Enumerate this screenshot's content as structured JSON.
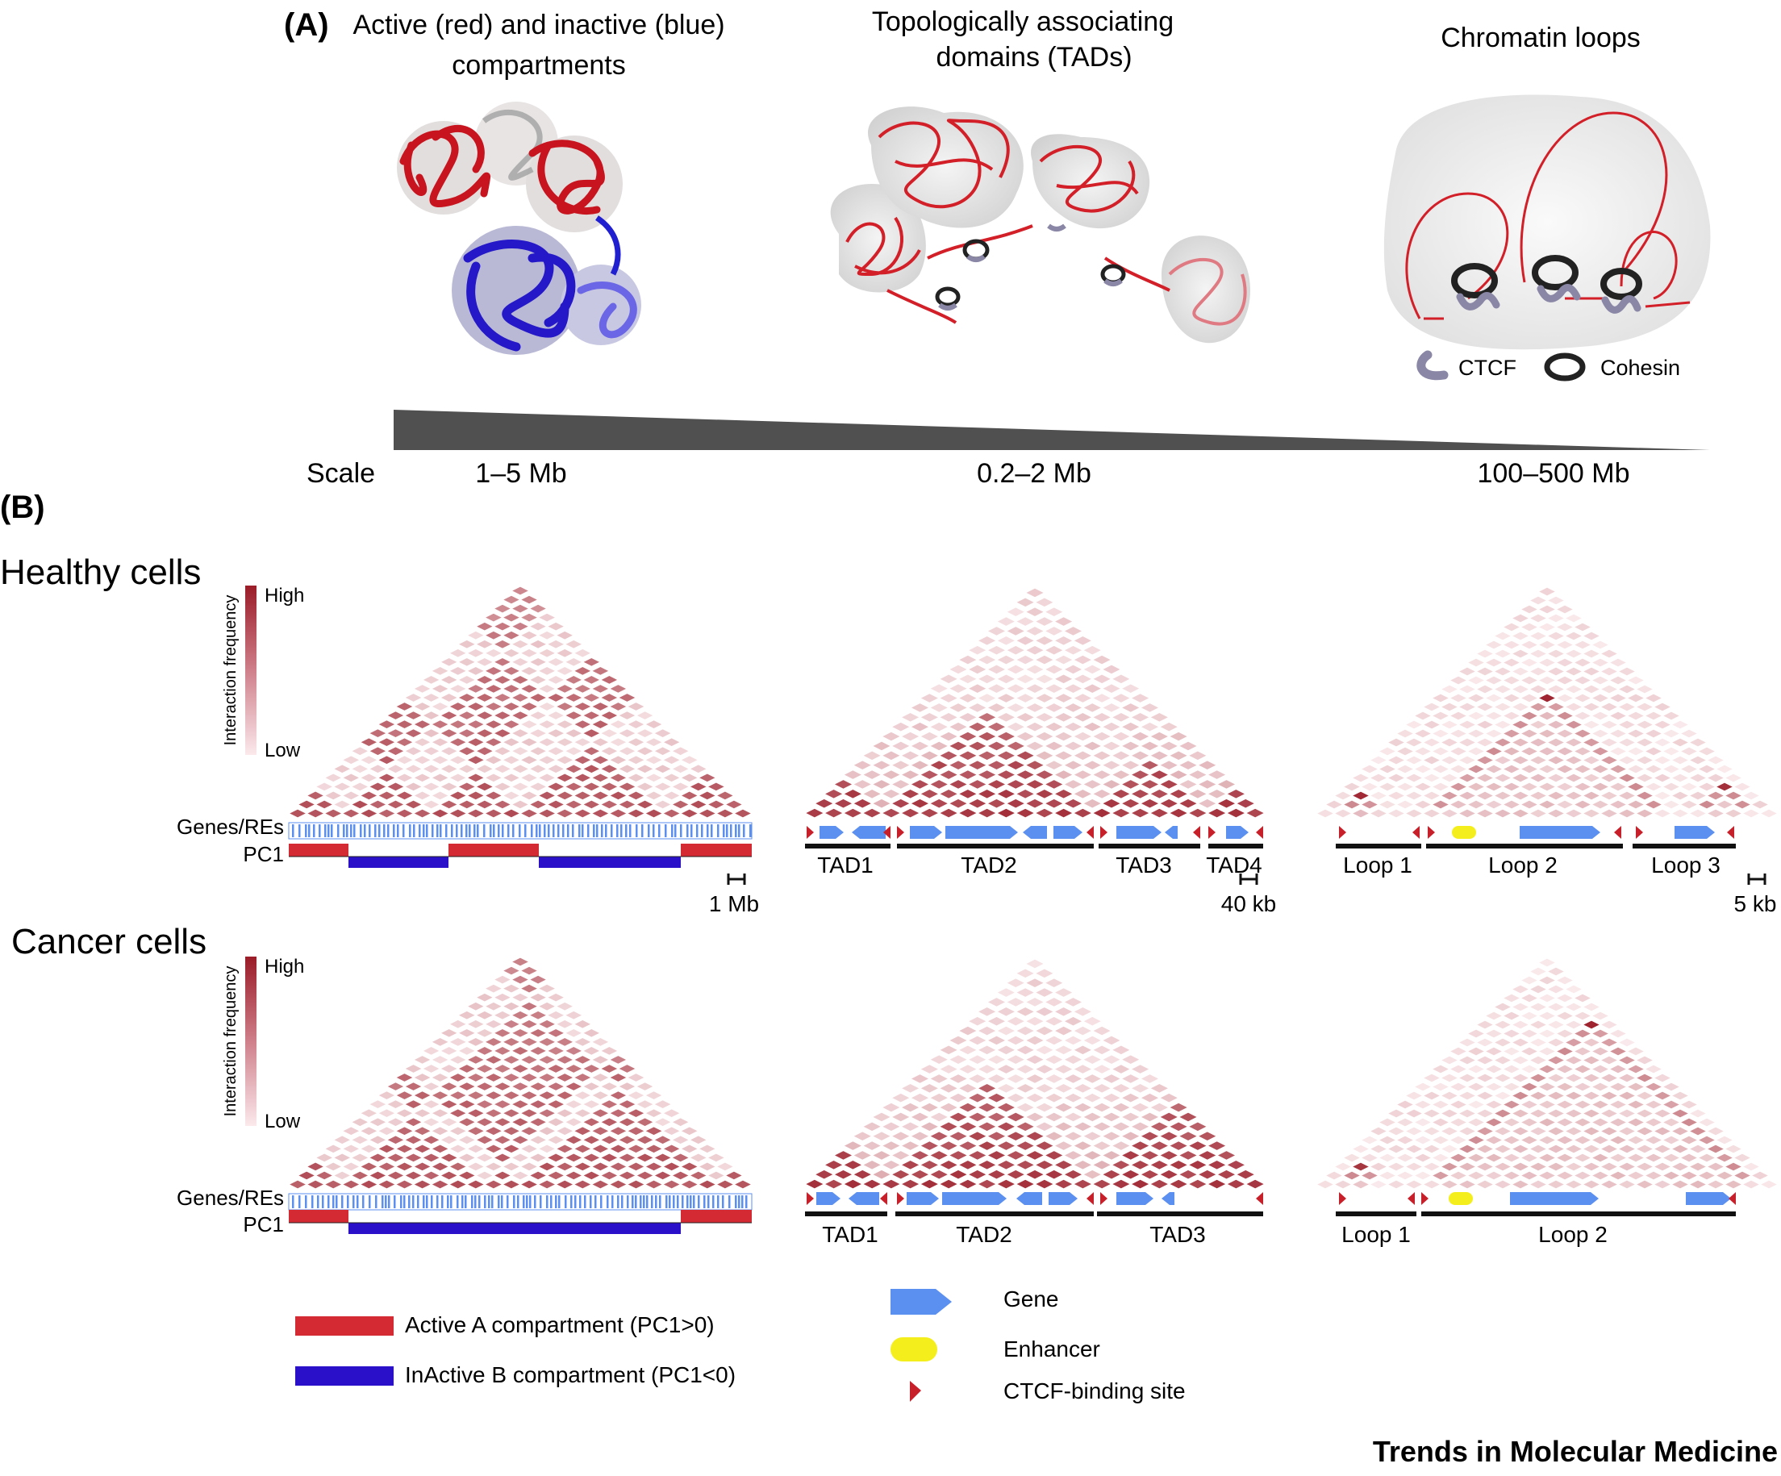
{
  "panel_a": {
    "label": "(A)",
    "titles": {
      "compartments": [
        "Active (red) and inactive (blue)",
        "compartments"
      ],
      "tads": [
        "Topologically associating",
        "domains (TADs)"
      ],
      "loops": [
        "Chromatin loops"
      ]
    },
    "legend": {
      "ctcf": "CTCF",
      "cohesin": "Cohesin"
    },
    "scale": {
      "label": "Scale",
      "values": [
        "1–5 Mb",
        "0.2–2 Mb",
        "100–500 Mb"
      ]
    }
  },
  "panel_b": {
    "label": "(B)",
    "rows": [
      {
        "title": "Healthy cells",
        "tads": [
          "TAD1",
          "TAD2",
          "TAD3",
          "TAD4"
        ],
        "loops": [
          "Loop 1",
          "Loop 2",
          "Loop 3"
        ]
      },
      {
        "title": "Cancer cells",
        "tads": [
          "TAD1",
          "TAD2",
          "TAD3"
        ],
        "loops": [
          "Loop 1",
          "Loop 2"
        ]
      }
    ],
    "colorbar": {
      "axis": "Interaction frequency",
      "high": "High",
      "low": "Low"
    },
    "track_labels": {
      "genes": "Genes/REs",
      "pc1": "PC1"
    },
    "scale_bars": [
      "1 Mb",
      "40 kb",
      "5 kb"
    ],
    "colors": {
      "active": "#d42a34",
      "inactive": "#2a10c8",
      "gene": "#5b8ff0",
      "enhancer": "#f4ef1c",
      "ctcf_site": "#c8202a",
      "heat_high": "#9a1c28"
    }
  },
  "legend": {
    "active": "Active A compartment (PC1>0)",
    "inactive": "InActive B compartment (PC1<0)",
    "gene": "Gene",
    "enhancer": "Enhancer",
    "ctcf_site": "CTCF-binding site"
  },
  "footer": "Trends in Molecular Medicine"
}
